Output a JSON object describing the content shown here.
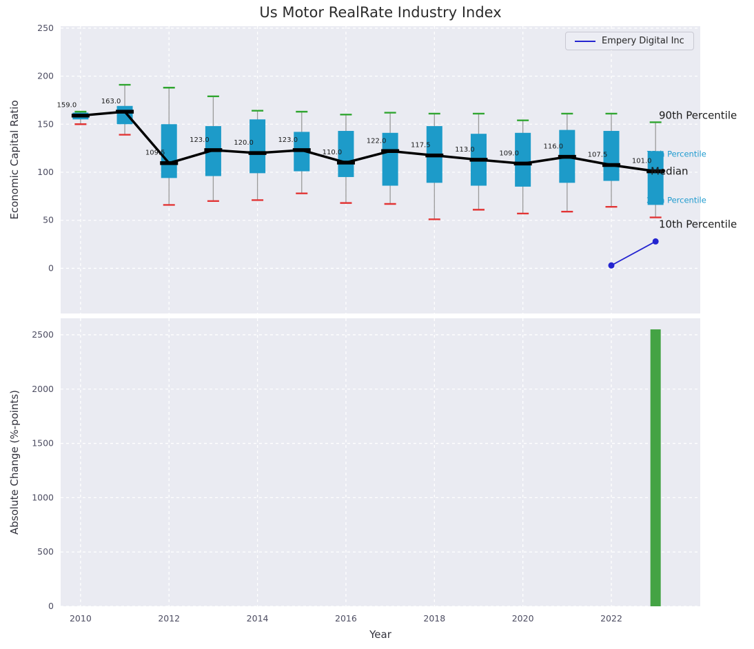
{
  "title": "Us Motor RealRate Industry Index",
  "axes": {
    "top_ylabel": "Economic Capital Ratio",
    "bottom_ylabel": "Absolute Change (%-points)",
    "xlabel": "Year"
  },
  "legend": {
    "label": "Empery Digital Inc",
    "position": "upper right"
  },
  "colors": {
    "plot_bg": "#eaebf2",
    "grid": "#ffffff",
    "box_fill": "#1d9bc9",
    "whisker": "#9a9a9a",
    "cap_high": "#2fa52f",
    "cap_low": "#e23434",
    "median": "#000000",
    "series_line": "#2424d0",
    "bar": "#44a344",
    "tick_text": "#4b4b60",
    "annotation_cyan": "#1f9bcf",
    "annotation_black": "#1a1a1a"
  },
  "chart_data": [
    {
      "type": "boxplot",
      "title": "Us Motor RealRate Industry Index",
      "ylabel": "Economic Capital Ratio",
      "xlabel": "",
      "xlim": [
        2009.55,
        2024.01
      ],
      "ylim": [
        -47,
        252
      ],
      "yticks": [
        0,
        50,
        100,
        150,
        200,
        250
      ],
      "xticks": [
        2010,
        2012,
        2014,
        2016,
        2018,
        2020,
        2022
      ],
      "grid": "dashed-white",
      "legend_position": "upper right",
      "years": [
        2010,
        2011,
        2012,
        2013,
        2014,
        2015,
        2016,
        2017,
        2018,
        2019,
        2020,
        2021,
        2022,
        2023
      ],
      "p10": [
        150,
        139,
        66,
        70,
        71,
        78,
        68,
        67,
        51,
        61,
        57,
        59,
        64,
        53
      ],
      "p25": [
        155,
        150,
        94,
        96,
        99,
        101,
        95,
        86,
        89,
        86,
        85,
        89,
        91,
        66
      ],
      "median": [
        159,
        163,
        109.5,
        123,
        120,
        123,
        110,
        122,
        117.5,
        113,
        109,
        116,
        107.5,
        101
      ],
      "p75": [
        162,
        169,
        150,
        148,
        155,
        142,
        143,
        141,
        148,
        140,
        141,
        144,
        143,
        122
      ],
      "p90": [
        163,
        191,
        188,
        179,
        164,
        163,
        160,
        162,
        161,
        161,
        154,
        161,
        161,
        152
      ],
      "median_labels": [
        "159.0",
        "163.0",
        "109.5",
        "123.0",
        "120.0",
        "123.0",
        "110.0",
        "122.0",
        "117.5",
        "113.0",
        "109.0",
        "116.0",
        "107.5",
        "101.0"
      ],
      "series": [
        {
          "name": "Empery Digital Inc",
          "x": [
            2022,
            2023
          ],
          "y": [
            3,
            28
          ]
        }
      ],
      "annotations": [
        {
          "text": "90th Percentile",
          "y": 159,
          "style": "black"
        },
        {
          "text": "75th Percentile",
          "y": 119,
          "style": "cyan"
        },
        {
          "text": "Median",
          "y": 101,
          "style": "black"
        },
        {
          "text": "25th Percentile",
          "y": 71,
          "style": "cyan"
        },
        {
          "text": "10th Percentile",
          "y": 46,
          "style": "black"
        }
      ]
    },
    {
      "type": "bar",
      "ylabel": "Absolute Change (%-points)",
      "xlabel": "Year",
      "ylim": [
        0,
        2652
      ],
      "yticks": [
        0,
        500,
        1000,
        1500,
        2000,
        2500
      ],
      "xticks": [
        2010,
        2012,
        2014,
        2016,
        2018,
        2020,
        2022
      ],
      "bars": [
        {
          "x": 2023,
          "value": 2550
        }
      ]
    }
  ]
}
